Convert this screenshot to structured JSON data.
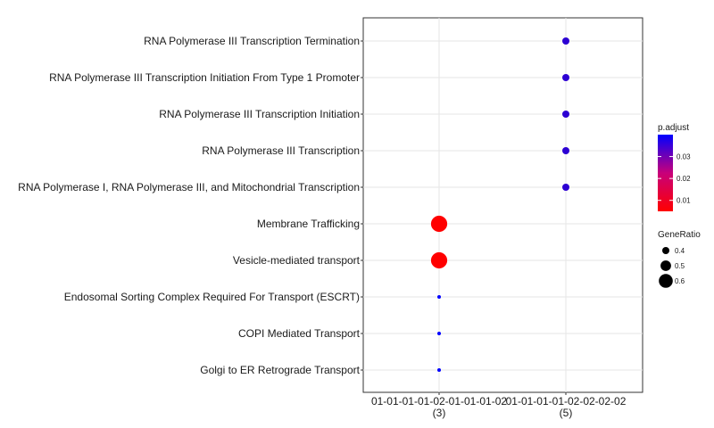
{
  "chart_data": {
    "type": "scatter",
    "title": "",
    "xlabel": "",
    "ylabel": "",
    "x_categories": [
      {
        "label": "01-01-01-01-02-01-01-01-02",
        "count": "(3)"
      },
      {
        "label": "01-01-01-01-02-02-02-02",
        "count": "(5)"
      }
    ],
    "y_categories": [
      "Golgi to ER Retrograde Transport",
      "COPI Mediated Transport",
      "Endosomal Sorting Complex Required For Transport (ESCRT)",
      "Vesicle-mediated transport",
      "Membrane Trafficking",
      "RNA Polymerase I, RNA Polymerase III, and Mitochondrial Transcription",
      "RNA Polymerase III Transcription",
      "RNA Polymerase III Transcription Initiation",
      "RNA Polymerase III Transcription Initiation From Type 1 Promoter",
      "RNA Polymerase III Transcription Termination"
    ],
    "points": [
      {
        "x": 0,
        "y": "Golgi to ER Retrograde Transport",
        "gene_ratio": 0.33,
        "p_adjust": 0.04
      },
      {
        "x": 0,
        "y": "COPI Mediated Transport",
        "gene_ratio": 0.33,
        "p_adjust": 0.04
      },
      {
        "x": 0,
        "y": "Endosomal Sorting Complex Required For Transport (ESCRT)",
        "gene_ratio": 0.33,
        "p_adjust": 0.04
      },
      {
        "x": 0,
        "y": "Vesicle-mediated transport",
        "gene_ratio": 0.67,
        "p_adjust": 0.005
      },
      {
        "x": 0,
        "y": "Membrane Trafficking",
        "gene_ratio": 0.67,
        "p_adjust": 0.005
      },
      {
        "x": 1,
        "y": "RNA Polymerase I, RNA Polymerase III, and Mitochondrial Transcription",
        "gene_ratio": 0.4,
        "p_adjust": 0.034
      },
      {
        "x": 1,
        "y": "RNA Polymerase III Transcription",
        "gene_ratio": 0.4,
        "p_adjust": 0.034
      },
      {
        "x": 1,
        "y": "RNA Polymerase III Transcription Initiation",
        "gene_ratio": 0.4,
        "p_adjust": 0.034
      },
      {
        "x": 1,
        "y": "RNA Polymerase III Transcription Initiation From Type 1 Promoter",
        "gene_ratio": 0.4,
        "p_adjust": 0.034
      },
      {
        "x": 1,
        "y": "RNA Polymerase III Transcription Termination",
        "gene_ratio": 0.4,
        "p_adjust": 0.034
      }
    ],
    "grid": true,
    "legend_placement": "right",
    "color_legend": {
      "title": "p.adjust",
      "ticks": [
        0.01,
        0.02,
        0.03
      ],
      "tick_labels": [
        "0.01",
        "0.02",
        "0.03"
      ],
      "range": [
        0.005,
        0.04
      ],
      "low_color": "#ff0000",
      "high_color": "#0000ff"
    },
    "size_legend": {
      "title": "GeneRatio",
      "values": [
        0.4,
        0.5,
        0.6
      ],
      "labels": [
        "0.4",
        "0.5",
        "0.6"
      ]
    }
  }
}
